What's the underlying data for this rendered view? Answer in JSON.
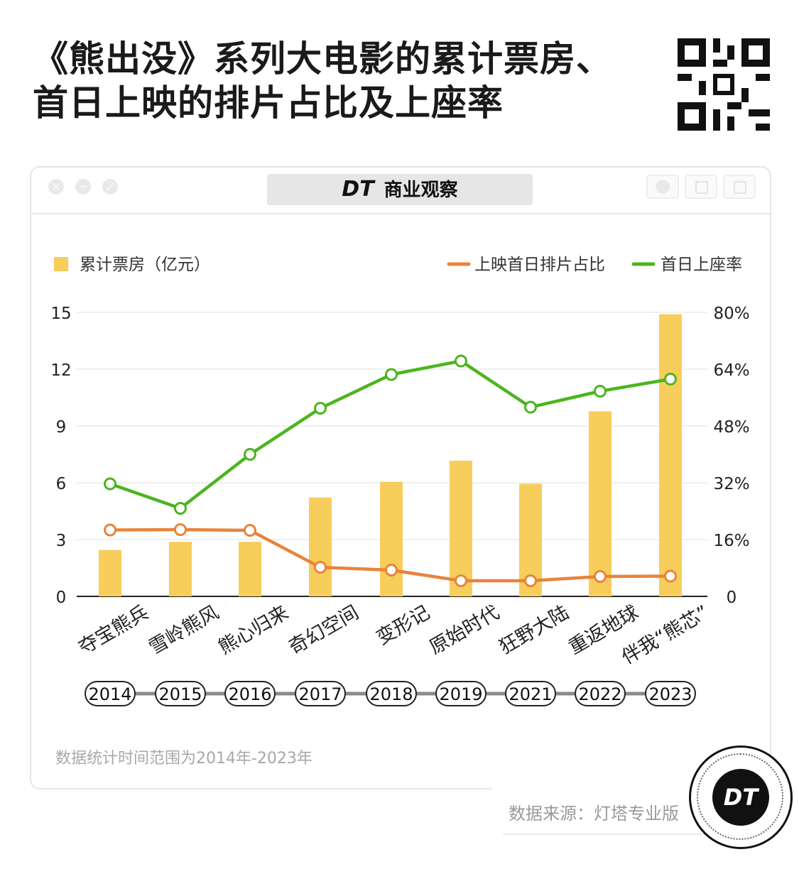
{
  "header": {
    "title_line1": "《熊出没》系列大电影的累计票房、",
    "title_line2": "首日上映的排片占比及上座率"
  },
  "window": {
    "brand_logo": "DT",
    "brand_name": "商业观察"
  },
  "footnote": "数据统计时间范围为2014年-2023年",
  "source": "数据来源：灯塔专业版",
  "corner_logo": "DT",
  "colors": {
    "bar": "#f7cd5b",
    "schedule_line": "#e8843c",
    "occupancy_line": "#4cb51e",
    "grid": "#ececec"
  },
  "chart_data": {
    "type": "bar",
    "categories": [
      "夺宝熊兵",
      "雪岭熊风",
      "熊心归来",
      "奇幻空间",
      "变形记",
      "原始时代",
      "狂野大陆",
      "重返地球",
      "伴我“熊芯”"
    ],
    "years": [
      "2014",
      "2015",
      "2016",
      "2017",
      "2018",
      "2019",
      "2021",
      "2022",
      "2023"
    ],
    "left_axis": {
      "ylim": [
        0,
        15
      ],
      "ticks": [
        "0",
        "3",
        "6",
        "9",
        "12",
        "15"
      ]
    },
    "right_axis": {
      "ylim": [
        0,
        80
      ],
      "ticks": [
        "0",
        "16%",
        "32%",
        "48%",
        "64%",
        "80%"
      ]
    },
    "series": [
      {
        "name": "累计票房（亿元）",
        "type": "bar",
        "axis": "left",
        "values": [
          2.45,
          2.88,
          2.88,
          5.22,
          6.05,
          7.17,
          5.95,
          9.77,
          14.9
        ]
      },
      {
        "name": "上映首日排片占比",
        "type": "line",
        "axis": "right",
        "values": [
          18.7,
          18.8,
          18.6,
          8.2,
          7.4,
          4.4,
          4.4,
          5.6,
          5.7
        ]
      },
      {
        "name": "首日上座率",
        "type": "line",
        "axis": "right",
        "values": [
          31.7,
          24.8,
          40.0,
          53.0,
          62.5,
          66.3,
          53.3,
          57.8,
          61.2
        ]
      }
    ],
    "grid": true,
    "legend": "top"
  }
}
